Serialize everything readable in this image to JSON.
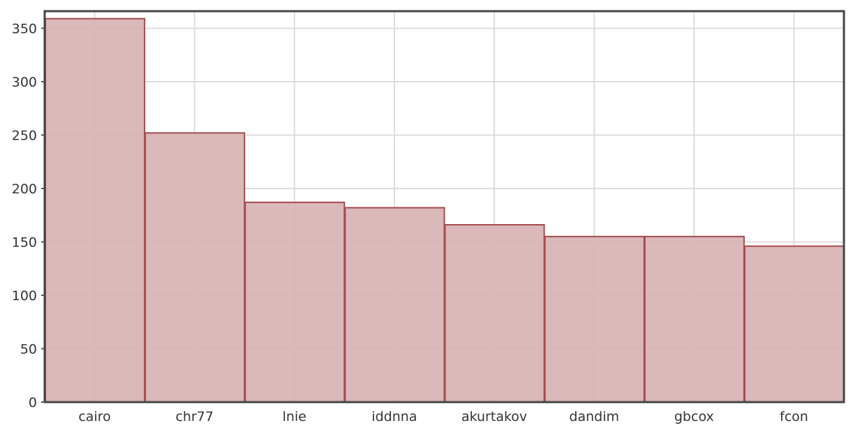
{
  "chart_data": {
    "type": "bar",
    "categories": [
      "cairo",
      "chr77",
      "lnie",
      "iddnna",
      "akurtakov",
      "dandim",
      "gbcox",
      "fcon"
    ],
    "values": [
      359,
      252,
      187,
      182,
      166,
      155,
      155,
      146
    ],
    "title": "",
    "xlabel": "",
    "ylabel": "",
    "ylim": [
      0,
      366
    ],
    "yticks": [
      0,
      50,
      100,
      150,
      200,
      250,
      300,
      350
    ],
    "grid": true,
    "colors": {
      "bar_fill": "#d7b0b1",
      "bar_stroke": "#a34a4e",
      "grid": "#dddddd",
      "frame": "#444444",
      "axis": "#555555"
    }
  }
}
